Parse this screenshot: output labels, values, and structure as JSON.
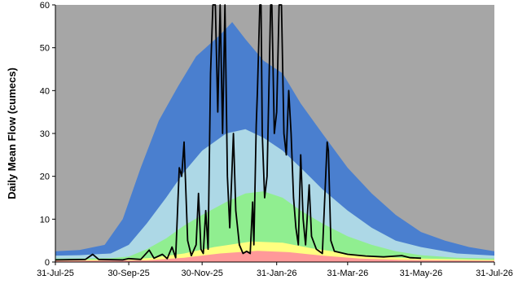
{
  "chart_data": {
    "type": "area",
    "title": "",
    "ylabel": "Daily Mean Flow (cumecs)",
    "xlabel": "",
    "ylim": [
      0,
      60
    ],
    "yticks": [
      0,
      10,
      20,
      30,
      40,
      50,
      60
    ],
    "xticks": [
      {
        "date": "2025-07-31",
        "label": "31-Jul-25"
      },
      {
        "date": "2025-09-30",
        "label": "30-Sep-25"
      },
      {
        "date": "2025-11-30",
        "label": "30-Nov-25"
      },
      {
        "date": "2026-01-31",
        "label": "31-Jan-26"
      },
      {
        "date": "2026-03-31",
        "label": "31-Mar-26"
      },
      {
        "date": "2026-05-31",
        "label": "31-May-26"
      },
      {
        "date": "2026-07-31",
        "label": "31-Jul-26"
      }
    ],
    "xlim": [
      "2025-07-31",
      "2026-07-31"
    ],
    "background_color": "#a6a6a6",
    "bands": [
      {
        "color": "#4a7fcf",
        "upper": [
          [
            "2025-07-31",
            2.5
          ],
          [
            "2025-08-20",
            2.8
          ],
          [
            "2025-09-10",
            4
          ],
          [
            "2025-09-25",
            10
          ],
          [
            "2025-10-10",
            22
          ],
          [
            "2025-10-25",
            33
          ],
          [
            "2025-11-10",
            41
          ],
          [
            "2025-11-25",
            48
          ],
          [
            "2025-12-15",
            53
          ],
          [
            "2025-12-25",
            56
          ],
          [
            "2026-01-05",
            52
          ],
          [
            "2026-01-20",
            47
          ],
          [
            "2026-02-05",
            44
          ],
          [
            "2026-02-20",
            37
          ],
          [
            "2026-03-10",
            30
          ],
          [
            "2026-03-31",
            22
          ],
          [
            "2026-04-20",
            16
          ],
          [
            "2026-05-10",
            11
          ],
          [
            "2026-05-31",
            7
          ],
          [
            "2026-06-20",
            5
          ],
          [
            "2026-07-10",
            3.5
          ],
          [
            "2026-07-31",
            2.5
          ]
        ]
      },
      {
        "color": "#add8e6",
        "upper": [
          [
            "2025-07-31",
            1.5
          ],
          [
            "2025-08-20",
            1.6
          ],
          [
            "2025-09-15",
            2
          ],
          [
            "2025-09-30",
            4
          ],
          [
            "2025-10-15",
            9
          ],
          [
            "2025-10-31",
            15
          ],
          [
            "2025-11-15",
            21
          ],
          [
            "2025-11-30",
            26
          ],
          [
            "2025-12-20",
            30
          ],
          [
            "2026-01-05",
            31
          ],
          [
            "2026-01-20",
            29
          ],
          [
            "2026-02-05",
            26
          ],
          [
            "2026-02-20",
            22
          ],
          [
            "2026-03-10",
            17
          ],
          [
            "2026-03-31",
            12
          ],
          [
            "2026-04-20",
            8
          ],
          [
            "2026-05-10",
            5
          ],
          [
            "2026-05-31",
            3.5
          ],
          [
            "2026-06-30",
            2
          ],
          [
            "2026-07-31",
            1.5
          ]
        ]
      },
      {
        "color": "#90ee90",
        "upper": [
          [
            "2025-07-31",
            0.8
          ],
          [
            "2025-09-15",
            0.9
          ],
          [
            "2025-09-30",
            1.3
          ],
          [
            "2025-10-15",
            3
          ],
          [
            "2025-10-31",
            5.5
          ],
          [
            "2025-11-15",
            8.5
          ],
          [
            "2025-11-30",
            11
          ],
          [
            "2025-12-20",
            14
          ],
          [
            "2026-01-05",
            16
          ],
          [
            "2026-01-20",
            16.5
          ],
          [
            "2026-02-05",
            15
          ],
          [
            "2026-02-20",
            12
          ],
          [
            "2026-03-10",
            9
          ],
          [
            "2026-03-31",
            6
          ],
          [
            "2026-04-20",
            4
          ],
          [
            "2026-05-10",
            2.5
          ],
          [
            "2026-05-31",
            1.6
          ],
          [
            "2026-06-30",
            1
          ],
          [
            "2026-07-31",
            0.8
          ]
        ]
      },
      {
        "color": "#ffff80",
        "upper": [
          [
            "2025-07-31",
            0.5
          ],
          [
            "2025-09-30",
            0.6
          ],
          [
            "2025-10-20",
            1
          ],
          [
            "2025-11-15",
            2
          ],
          [
            "2025-12-10",
            3.5
          ],
          [
            "2026-01-10",
            4.8
          ],
          [
            "2026-02-05",
            4.5
          ],
          [
            "2026-03-01",
            3.2
          ],
          [
            "2026-03-31",
            2
          ],
          [
            "2026-04-30",
            1.2
          ],
          [
            "2026-05-31",
            0.8
          ],
          [
            "2026-07-31",
            0.5
          ]
        ]
      },
      {
        "color": "#ff9999",
        "upper": [
          [
            "2025-07-31",
            0.3
          ],
          [
            "2025-10-15",
            0.4
          ],
          [
            "2025-11-15",
            1
          ],
          [
            "2025-12-15",
            2
          ],
          [
            "2026-01-15",
            2.6
          ],
          [
            "2026-02-10",
            2.3
          ],
          [
            "2026-03-10",
            1.5
          ],
          [
            "2026-04-10",
            0.8
          ],
          [
            "2026-05-15",
            0.5
          ],
          [
            "2026-07-31",
            0.3
          ]
        ]
      }
    ],
    "series": [
      {
        "color": "#000000",
        "points": [
          [
            "2025-07-31",
            0.5
          ],
          [
            "2025-08-25",
            0.6
          ],
          [
            "2025-08-31",
            1.8
          ],
          [
            "2025-09-05",
            0.6
          ],
          [
            "2025-09-25",
            0.5
          ],
          [
            "2025-09-30",
            0.8
          ],
          [
            "2025-10-10",
            0.6
          ],
          [
            "2025-10-17",
            2.8
          ],
          [
            "2025-10-21",
            0.9
          ],
          [
            "2025-10-28",
            1.8
          ],
          [
            "2025-11-01",
            0.8
          ],
          [
            "2025-11-05",
            3.5
          ],
          [
            "2025-11-08",
            1
          ],
          [
            "2025-11-11",
            22
          ],
          [
            "2025-11-13",
            20
          ],
          [
            "2025-11-15",
            28
          ],
          [
            "2025-11-18",
            5
          ],
          [
            "2025-11-21",
            1.5
          ],
          [
            "2025-11-25",
            4
          ],
          [
            "2025-11-27",
            16
          ],
          [
            "2025-11-29",
            3
          ],
          [
            "2025-12-01",
            2
          ],
          [
            "2025-12-03",
            12
          ],
          [
            "2025-12-05",
            3
          ],
          [
            "2025-12-07",
            44
          ],
          [
            "2025-12-09",
            60
          ],
          [
            "2025-12-11",
            60
          ],
          [
            "2025-12-13",
            35
          ],
          [
            "2025-12-15",
            60
          ],
          [
            "2025-12-17",
            30
          ],
          [
            "2025-12-19",
            60
          ],
          [
            "2025-12-21",
            20
          ],
          [
            "2025-12-23",
            8
          ],
          [
            "2025-12-26",
            30
          ],
          [
            "2025-12-28",
            12
          ],
          [
            "2025-12-31",
            4
          ],
          [
            "2026-01-03",
            2
          ],
          [
            "2026-01-06",
            2.5
          ],
          [
            "2026-01-09",
            2
          ],
          [
            "2026-01-11",
            14
          ],
          [
            "2026-01-12",
            4
          ],
          [
            "2026-01-14",
            32
          ],
          [
            "2026-01-15",
            40
          ],
          [
            "2026-01-17",
            60
          ],
          [
            "2026-01-18",
            60
          ],
          [
            "2026-01-19",
            30
          ],
          [
            "2026-01-21",
            15
          ],
          [
            "2026-01-23",
            20
          ],
          [
            "2026-01-26",
            60
          ],
          [
            "2026-01-27",
            60
          ],
          [
            "2026-01-29",
            30
          ],
          [
            "2026-01-31",
            35
          ],
          [
            "2026-02-02",
            60
          ],
          [
            "2026-02-04",
            60
          ],
          [
            "2026-02-06",
            30
          ],
          [
            "2026-02-08",
            25
          ],
          [
            "2026-02-10",
            40
          ],
          [
            "2026-02-12",
            30
          ],
          [
            "2026-02-14",
            15
          ],
          [
            "2026-02-16",
            8
          ],
          [
            "2026-02-18",
            4
          ],
          [
            "2026-02-20",
            25
          ],
          [
            "2026-02-22",
            10
          ],
          [
            "2026-02-24",
            4
          ],
          [
            "2026-02-27",
            18
          ],
          [
            "2026-03-01",
            6
          ],
          [
            "2026-03-05",
            3
          ],
          [
            "2026-03-10",
            2
          ],
          [
            "2026-03-14",
            28
          ],
          [
            "2026-03-15",
            26
          ],
          [
            "2026-03-17",
            5
          ],
          [
            "2026-03-20",
            2.5
          ],
          [
            "2026-03-31",
            1.8
          ],
          [
            "2026-04-15",
            1.4
          ],
          [
            "2026-04-30",
            1.2
          ],
          [
            "2026-05-15",
            1.5
          ],
          [
            "2026-05-22",
            1.0
          ],
          [
            "2026-05-31",
            0.9
          ]
        ]
      }
    ],
    "grid": false
  }
}
